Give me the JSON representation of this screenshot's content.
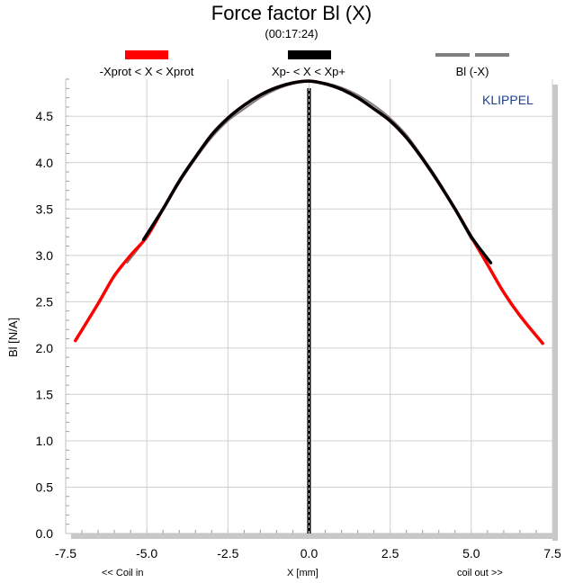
{
  "chart_data": {
    "type": "line",
    "title": "Force factor Bl (X)",
    "subtitle": "(00:17:24)",
    "xlabel": "X [mm]",
    "xlabel_left": "<< Coil in",
    "xlabel_right": "coil out >>",
    "ylabel": "Bl [N/A]",
    "watermark": "KLIPPEL",
    "xlim": [
      -7.5,
      7.5
    ],
    "ylim": [
      0.0,
      4.9
    ],
    "grid": true,
    "legend_placement": "top",
    "x_ticks": [
      -7.5,
      -5.0,
      -2.5,
      0.0,
      2.5,
      5.0,
      7.5
    ],
    "x_tick_labels": [
      "-7.5",
      "-5.0",
      "-2.5",
      "0.0",
      "2.5",
      "5.0",
      "7.5"
    ],
    "y_ticks": [
      0.0,
      0.5,
      1.0,
      1.5,
      2.0,
      2.5,
      3.0,
      3.5,
      4.0,
      4.5
    ],
    "y_tick_labels": [
      "0.0",
      "0.5",
      "1.0",
      "1.5",
      "2.0",
      "2.5",
      "3.0",
      "3.5",
      "4.0",
      "4.5"
    ],
    "series": [
      {
        "name": "-Xprot < X < Xprot",
        "color": "#ff0000",
        "x": [
          -7.2,
          -6.5,
          -6.0,
          -5.5,
          -5.0,
          -4.5,
          -4.0,
          -3.5,
          -3.0,
          -2.5,
          -2.0,
          -1.5,
          -1.0,
          -0.5,
          0.0,
          0.5,
          1.0,
          1.5,
          2.0,
          2.5,
          3.0,
          3.5,
          4.0,
          4.5,
          5.0,
          5.5,
          6.0,
          6.5,
          7.2
        ],
        "y": [
          2.08,
          2.48,
          2.78,
          3.0,
          3.2,
          3.5,
          3.8,
          4.06,
          4.3,
          4.48,
          4.62,
          4.73,
          4.81,
          4.86,
          4.88,
          4.85,
          4.79,
          4.7,
          4.58,
          4.45,
          4.27,
          4.04,
          3.78,
          3.5,
          3.2,
          2.9,
          2.6,
          2.35,
          2.05
        ]
      },
      {
        "name": "Xp- < X < Xp+",
        "color": "#000000",
        "x": [
          -5.1,
          -4.5,
          -4.0,
          -3.5,
          -3.0,
          -2.5,
          -2.0,
          -1.5,
          -1.0,
          -0.5,
          0.0,
          0.5,
          1.0,
          1.5,
          2.0,
          2.5,
          3.0,
          3.5,
          4.0,
          4.5,
          5.0,
          5.6
        ],
        "y": [
          3.17,
          3.5,
          3.8,
          4.06,
          4.3,
          4.48,
          4.62,
          4.73,
          4.81,
          4.86,
          4.88,
          4.85,
          4.79,
          4.7,
          4.58,
          4.45,
          4.27,
          4.04,
          3.78,
          3.5,
          3.2,
          2.92
        ]
      },
      {
        "name": "Bl (-X)",
        "color": "#808080",
        "x": [
          -5.6,
          -5.0,
          -4.5,
          -4.0,
          -3.5,
          -3.0,
          -2.5,
          -2.0,
          -1.5,
          -1.0,
          -0.5,
          0.0,
          0.5,
          1.0,
          1.5,
          2.0,
          2.5,
          3.0,
          3.5,
          4.0,
          4.5,
          5.0
        ],
        "y": [
          2.92,
          3.2,
          3.5,
          3.78,
          4.04,
          4.27,
          4.45,
          4.58,
          4.7,
          4.79,
          4.85,
          4.88,
          4.86,
          4.81,
          4.73,
          4.62,
          4.48,
          4.3,
          4.06,
          3.8,
          3.5,
          3.17
        ]
      }
    ],
    "vertical_marker": {
      "x": 0.0,
      "color": "#000000"
    }
  }
}
